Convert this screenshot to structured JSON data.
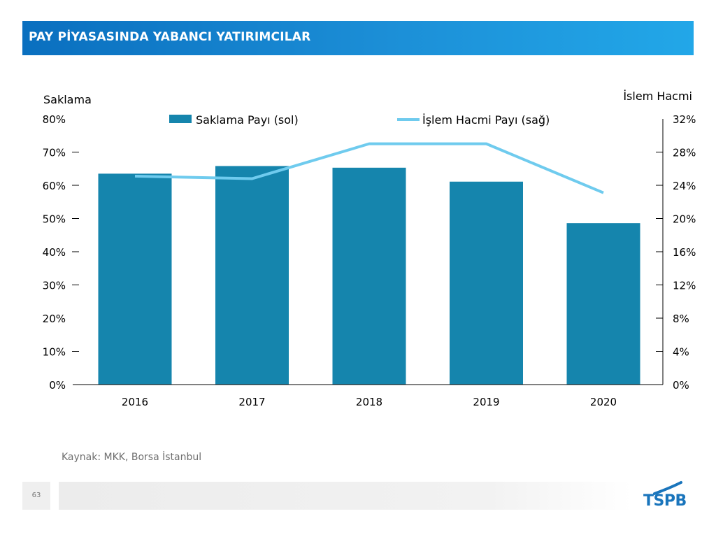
{
  "header": {
    "title": "PAY PİYASASINDA YABANCI YATIRIMCILAR"
  },
  "chart_data": {
    "type": "bar",
    "categories": [
      "2016",
      "2017",
      "2018",
      "2019",
      "2020"
    ],
    "series": [
      {
        "name": "Saklama Payı (sol)",
        "type": "bar",
        "axis": "left",
        "color": "#1585ad",
        "values": [
          63.5,
          65.8,
          65.3,
          61.1,
          48.6
        ]
      },
      {
        "name": "İşlem Hacmi Payı (sağ)",
        "type": "line",
        "axis": "right",
        "color": "#6fcbee",
        "values": [
          25.1,
          24.8,
          29.0,
          29.0,
          23.1
        ]
      }
    ],
    "left_axis": {
      "label": "Saklama",
      "ylim": [
        0,
        80
      ],
      "ticks": [
        "0%",
        "10%",
        "20%",
        "30%",
        "40%",
        "50%",
        "60%",
        "70%",
        "80%"
      ]
    },
    "right_axis": {
      "label": "İslem Hacmi",
      "ylim": [
        0,
        32
      ],
      "ticks": [
        "0%",
        "4%",
        "8%",
        "12%",
        "16%",
        "20%",
        "24%",
        "28%",
        "32%"
      ]
    },
    "legend_position": "top-center",
    "grid": false
  },
  "footer": {
    "source": "Kaynak: MKK, Borsa İstanbul",
    "page_number": "63",
    "logo_text": "TSPB"
  }
}
